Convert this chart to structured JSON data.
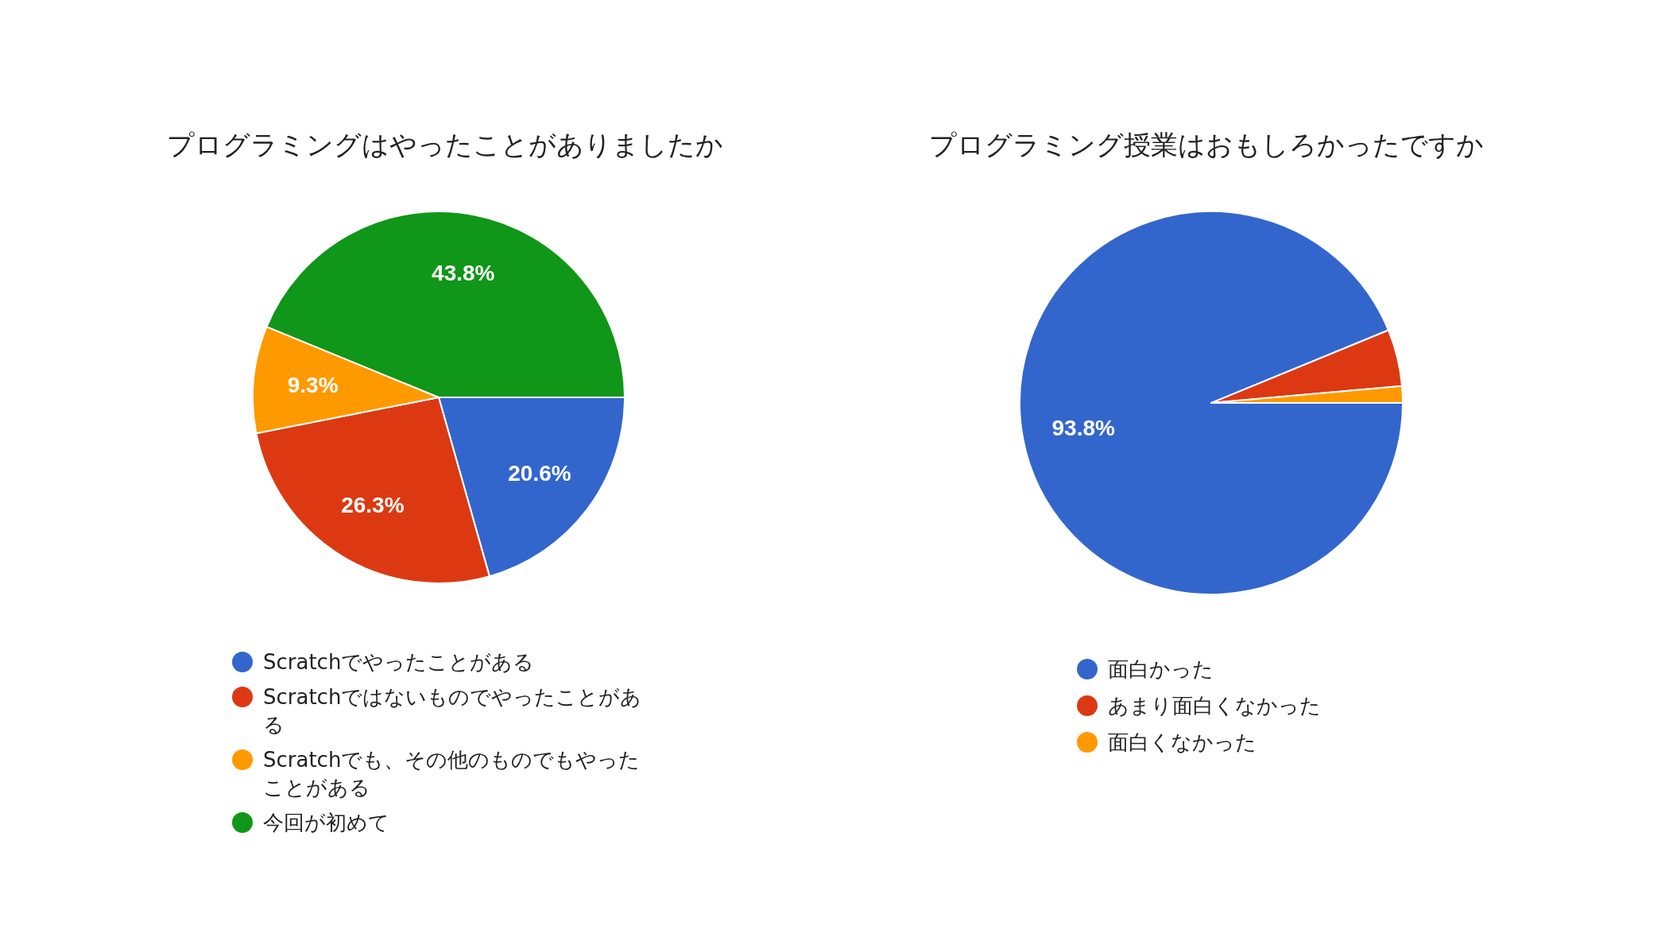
{
  "chart_data": [
    {
      "type": "pie",
      "title": "プログラミングはやったことがありましたか",
      "categories": [
        "Scratchでやったことがある",
        "Scratchではないものでやったことがある",
        "Scratchでも、その他のものでもやったことがある",
        "今回が初めて"
      ],
      "values": [
        20.6,
        26.3,
        9.3,
        43.8
      ],
      "colors": [
        "#3366cc",
        "#dc3912",
        "#ff9900",
        "#109618"
      ],
      "value_labels": [
        "20.6%",
        "26.3%",
        "9.3%",
        "43.8%"
      ],
      "legend": "bottom"
    },
    {
      "type": "pie",
      "title": "プログラミング授業はおもしろかったですか",
      "categories": [
        "面白かった",
        "あまり面白くなかった",
        "面白くなかった"
      ],
      "values": [
        93.8,
        4.8,
        1.4
      ],
      "colors": [
        "#3366cc",
        "#dc3912",
        "#ff9900"
      ],
      "value_labels": [
        "93.8%",
        null,
        null
      ],
      "legend": "bottom"
    }
  ]
}
